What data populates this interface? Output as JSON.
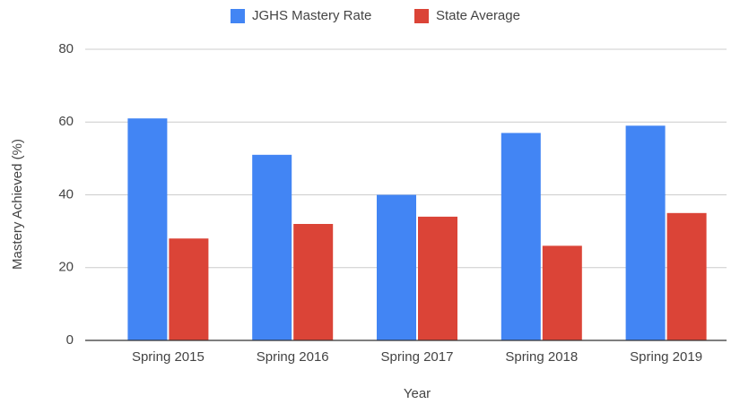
{
  "chart_data": {
    "type": "bar",
    "xlabel": "Year",
    "ylabel": "Mastery Achieved (%)",
    "categories": [
      "Spring 2015",
      "Spring 2016",
      "Spring 2017",
      "Spring 2018",
      "Spring 2019"
    ],
    "series": [
      {
        "name": "JGHS Mastery Rate",
        "color": "#4285f4",
        "values": [
          61,
          51,
          40,
          57,
          59
        ]
      },
      {
        "name": "State Average",
        "color": "#db4437",
        "values": [
          28,
          32,
          34,
          26,
          35
        ]
      }
    ],
    "ylim": [
      0,
      80
    ],
    "yticks": [
      0,
      20,
      40,
      60,
      80
    ],
    "grid": true,
    "legend": "top"
  }
}
